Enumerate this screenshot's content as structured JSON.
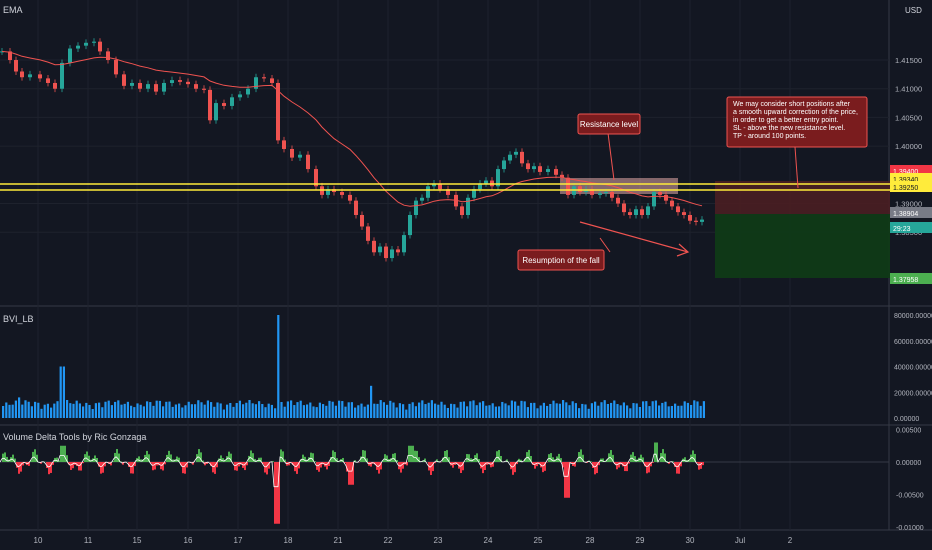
{
  "chart_data": [
    {
      "type": "candlestick",
      "title": "EMA",
      "currency": "USD",
      "x_ticks": [
        "10",
        "11",
        "15",
        "16",
        "17",
        "18",
        "21",
        "22",
        "23",
        "24",
        "25",
        "28",
        "29",
        "30",
        "Jul",
        "2"
      ],
      "y_ticks": [
        "1.41500",
        "1.41000",
        "1.40500",
        "1.40000",
        "1.39000",
        "1.38500"
      ],
      "price_labels": [
        {
          "value": "1.39400",
          "color": "#f23645"
        },
        {
          "value": "1.39340",
          "color": "#ffeb3b"
        },
        {
          "value": "1.39250",
          "color": "#ffeb3b"
        },
        {
          "value": "1.38904",
          "color": "#787b86"
        },
        {
          "value": "29:23",
          "color": "#26a69a"
        },
        {
          "value": "1.37958",
          "color": "#4caf50"
        }
      ],
      "horizontal_levels": [
        1.3934,
        1.3925
      ],
      "short_position": {
        "stop_loss": 1.394,
        "entry": 1.38904,
        "target": 1.37958
      },
      "annotations": [
        "Resistance level",
        "Resumption of the fall",
        "We may consider short positions after a smooth upward correction of the price, in order to get a better entry point. SL - above the new resistance level. TP - around 100 points."
      ],
      "up_color": "#26a69a",
      "down_color": "#ef5350",
      "ema_color": "#ef5350"
    },
    {
      "type": "bar",
      "title": "BVI_LB",
      "y_ticks": [
        "80000.00000",
        "60000.00000",
        "40000.00000",
        "20000.00000",
        "0.00000"
      ],
      "color": "#2196f3",
      "peak": 80000
    },
    {
      "type": "area",
      "title": "Volume Delta Tools by Ric Gonzaga",
      "y_ticks": [
        "0.00500",
        "0.00000",
        "-0.00500",
        "-0.01000"
      ],
      "colors": {
        "positive": "#4caf50",
        "negative": "#f23645",
        "line": "#ffffff"
      }
    }
  ]
}
